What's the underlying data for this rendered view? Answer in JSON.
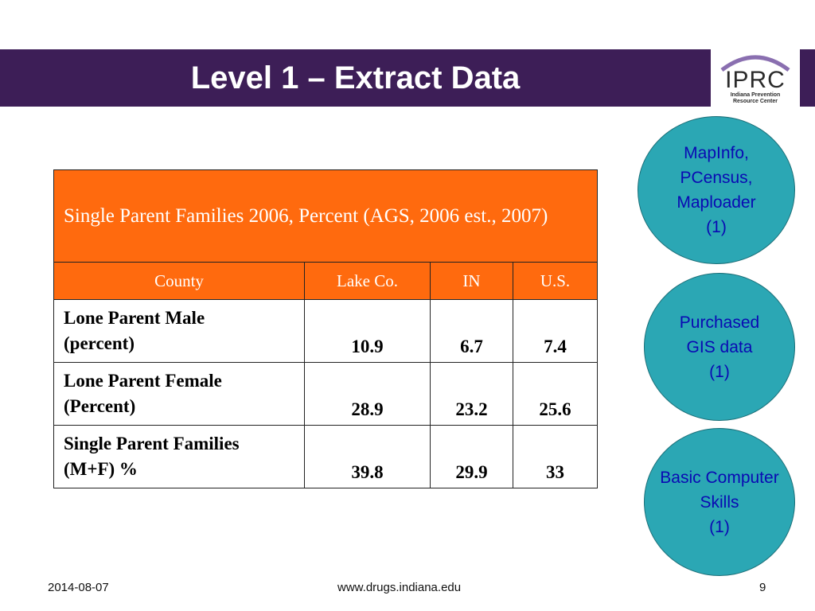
{
  "title": "Level 1 – Extract Data",
  "logo": {
    "text": "IPRC",
    "subtitle_line1": "Indiana Prevention",
    "subtitle_line2": "Resource Center"
  },
  "table": {
    "caption": "Single Parent Families 2006, Percent  (AGS, 2006 est., 2007)",
    "headers": [
      "County",
      "Lake Co.",
      "IN",
      "U.S."
    ],
    "rows": [
      {
        "label_line1": "Lone Parent Male",
        "label_line2": "(percent)",
        "values": [
          "10.9",
          "6.7",
          "7.4"
        ]
      },
      {
        "label_line1": "Lone Parent Female",
        "label_line2": "(Percent)",
        "values": [
          "28.9",
          "23.2",
          "25.6"
        ]
      },
      {
        "label_line1": "Single Parent Families",
        "label_line2": "(M+F) %",
        "values": [
          "39.8",
          "29.9",
          "33"
        ]
      }
    ]
  },
  "circles": [
    {
      "lines": [
        "MapInfo,",
        "PCensus,",
        "Maploader",
        "(1)"
      ]
    },
    {
      "lines": [
        "Purchased",
        "GIS data",
        "(1)"
      ]
    },
    {
      "lines": [
        "Basic Computer",
        "Skills",
        "(1)"
      ]
    }
  ],
  "footer": {
    "date": "2014-08-07",
    "url": "www.drugs.indiana.edu",
    "page": "9"
  },
  "colors": {
    "header_bg": "#3d1e57",
    "table_orange": "#ff6a0e",
    "circle_teal": "#2ba7b4",
    "circle_text": "#0a0ab3"
  }
}
